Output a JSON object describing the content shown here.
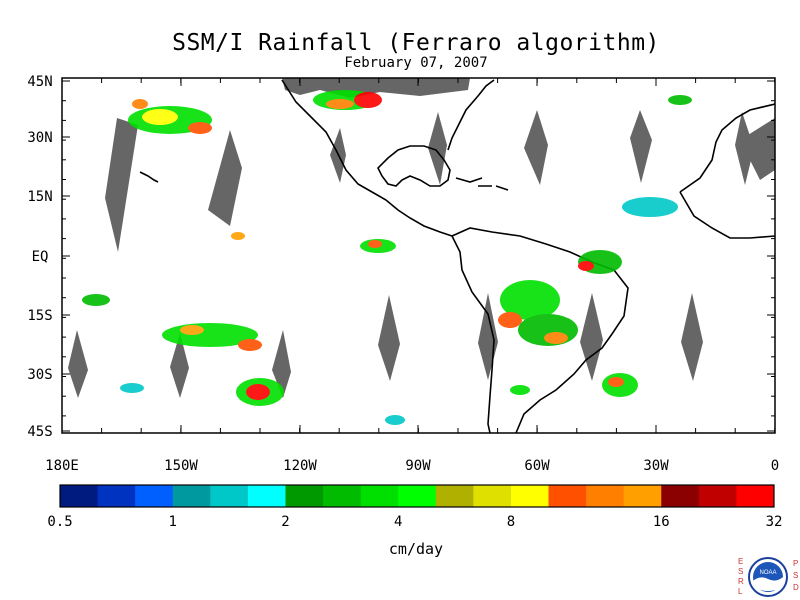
{
  "map": {
    "title": "SSM/I Rainfall (Ferraro algorithm)",
    "subtitle": "February 07, 2007",
    "lat_labels": [
      "45N",
      "30N",
      "15N",
      "EQ",
      "15S",
      "30S",
      "45S"
    ],
    "lon_labels": [
      "180E",
      "150W",
      "120W",
      "90W",
      "60W",
      "30W",
      "0"
    ],
    "colors": {
      "no_data_swath_gap": "#666666",
      "coastline": "#000000",
      "background": "#ffffff"
    }
  },
  "colorbar": {
    "units": "cm/day",
    "tick_labels": [
      "0.5",
      "1",
      "2",
      "4",
      "8",
      "16",
      "32"
    ],
    "colors": [
      "#001b80",
      "#0033c0",
      "#0060ff",
      "#00999f",
      "#00c8c8",
      "#00ffff",
      "#009900",
      "#00bb00",
      "#00e000",
      "#00ff00",
      "#b0b000",
      "#e0e000",
      "#ffff00",
      "#ff5000",
      "#ff8000",
      "#ffa000",
      "#8b0000",
      "#c00000",
      "#ff0000"
    ]
  },
  "logo": {
    "left_letters": [
      "E",
      "S",
      "R",
      "L"
    ],
    "right_letters": [
      "P",
      "S",
      "D"
    ],
    "badge": "NOAA"
  }
}
